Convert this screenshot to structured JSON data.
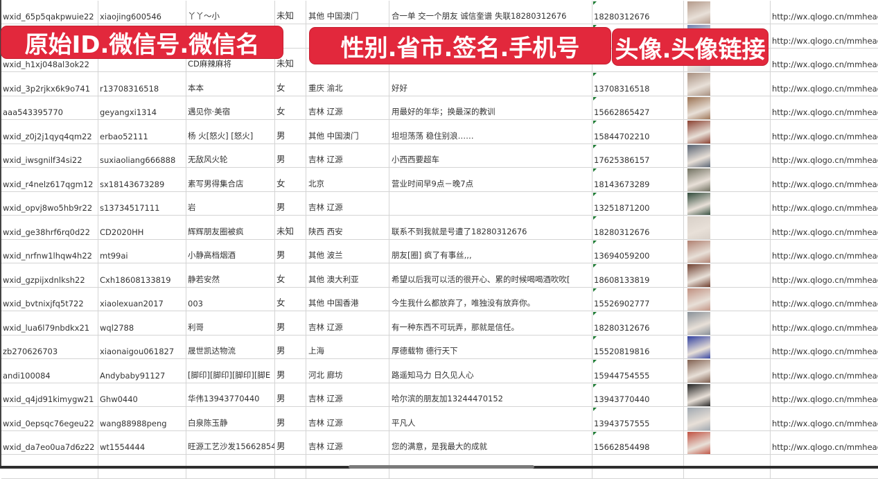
{
  "banners": [
    "原始ID.微信号.微信名",
    "性别.省市.签名.手机号",
    "头像.头像链接"
  ],
  "avatar_colors": [
    "#b49a8a",
    "#6c7fb0",
    "#c8c8d0",
    "#a89080",
    "#9a7050",
    "#8a4030",
    "#556070",
    "#707060",
    "#2f4a3a",
    "#d8d0c8",
    "#b08070",
    "#704030",
    "#c09080",
    "#889098",
    "#3040a0",
    "#806050",
    "#202020",
    "#a0a8b0",
    "#c05040"
  ],
  "rows": [
    [
      "wxid_65p5qakpwuie22",
      "xiaojing600546",
      "丫丫～小",
      "未知",
      "其他 中国澳门",
      "合一单 交一个朋友 诚信奎谱 失联18280312676",
      "18280312676",
      "",
      "http://wx.qlogo.cn/mmhead"
    ],
    [
      "",
      "",
      "",
      "",
      "",
      "",
      "",
      "",
      "http://wx.qlogo.cn/mmhead"
    ],
    [
      "wxid_h1xj048al3ok22",
      "",
      "CD麻辣麻将",
      "未知",
      "",
      "",
      "",
      "",
      "http://wx.qlogo.cn/mmhead"
    ],
    [
      "wxid_3p2rjkx6k9o741",
      "r13708316518",
      "本本",
      "女",
      "重庆 渝北",
      "好好",
      "13708316518",
      "",
      "http://wx.qlogo.cn/mmhead"
    ],
    [
      "aaa543395770",
      "geyangxi1314",
      "遇见你·美宿",
      "女",
      "吉林 辽源",
      "用最好的年华；换最深的教训",
      "15662865427",
      "",
      "http://wx.qlogo.cn/mmhead"
    ],
    [
      "wxid_z0j2j1qyq4qm22",
      "erbao52111",
      "杨 火[怒火] [怒火]",
      "男",
      "其他 中国澳门",
      "坦坦荡荡 稳住别浪……",
      "15844702210",
      "",
      "http://wx.qlogo.cn/mmhead"
    ],
    [
      "wxid_iwsgnilf34si22",
      "suxiaoliang666888",
      "无敌风火轮",
      "男",
      "吉林 辽源",
      "小西西要超车",
      "17625386157",
      "",
      "http://wx.qlogo.cn/mmhead"
    ],
    [
      "wxid_r4nelz617qgm12",
      "sx18143673289",
      "素写男得集合店",
      "女",
      "北京",
      "营业时间早9点－晚7点",
      "18143673289",
      "",
      "http://wx.qlogo.cn/mmhead"
    ],
    [
      "wxid_opvj8wo5hb9r22",
      "s13734517111",
      "岩",
      "男",
      "吉林 辽源",
      "",
      "13251871200",
      "",
      "http://wx.qlogo.cn/mmhead"
    ],
    [
      "wxid_ge38hrf6rq0d22",
      "CD2020HH",
      "辉辉朋友圈被疯",
      "未知",
      "陕西 西安",
      "联系不到我就是号遭了18280312676",
      "18280312676",
      "",
      "http://wx.qlogo.cn/mmhead"
    ],
    [
      "wxid_nrfnw1lhqw4h22",
      "mt99ai",
      "小静高档烟酒",
      "男",
      "其他 波兰",
      "朋友[圈] 疯了有事丝,,,",
      "13694059200",
      "",
      "http://wx.qlogo.cn/mmhead"
    ],
    [
      "wxid_gzpijxdnlksh22",
      "Cxh18608133819",
      "静若安然",
      "女",
      "其他 澳大利亚",
      "希望以后我可以活的很开心、累的时候喝喝酒吹吹[",
      "18608133819",
      "",
      "http://wx.qlogo.cn/mmhead"
    ],
    [
      "wxid_bvtnixjfq5t722",
      "xiaolexuan2017",
      "003",
      "女",
      "其他 中国香港",
      "今生我什么都放弃了，唯独没有放弃你。",
      "15526902777",
      "",
      "http://wx.qlogo.cn/mmhead"
    ],
    [
      "wxid_lua6l79nbdkx21",
      "wql2788",
      "利哥",
      "男",
      "吉林 辽源",
      "有一种东西不可玩弄，那就是信任。",
      "18280312676",
      "",
      "http://wx.qlogo.cn/mmhead"
    ],
    [
      "zb270626703",
      "xiaonaigou061827",
      "晟世凯达物流",
      "男",
      "上海",
      "厚德载物 德行天下",
      "15520819816",
      "",
      "http://wx.qlogo.cn/mmhead"
    ],
    [
      "andi100084",
      "Andybaby91127",
      "[脚印][脚印][脚印][脚E",
      "男",
      "河北 廊坊",
      "路遥知马力 日久见人心",
      "15944754555",
      "",
      "http://wx.qlogo.cn/mmhead"
    ],
    [
      "wxid_q4jd91kimygw21",
      "Ghw0440",
      "华伟13943770440",
      "男",
      "吉林 辽源",
      "哈尔滨的朋友加13244470152",
      "13943770440",
      "",
      "http://wx.qlogo.cn/mmhead"
    ],
    [
      "wxid_0epsqc76egeu22",
      "wang88988peng",
      "白泉陈玉静",
      "男",
      "吉林 辽源",
      "平凡人",
      "13943757555",
      "",
      "http://wx.qlogo.cn/mmhead"
    ],
    [
      "wxid_da7eo0ua7d6z22",
      "wt1554444",
      "旺源工艺沙发15662854",
      "男",
      "吉林 辽源",
      "您的满意，是我最大的成就",
      "15662854498",
      "",
      "http://wx.qlogo.cn/mmhead"
    ]
  ]
}
